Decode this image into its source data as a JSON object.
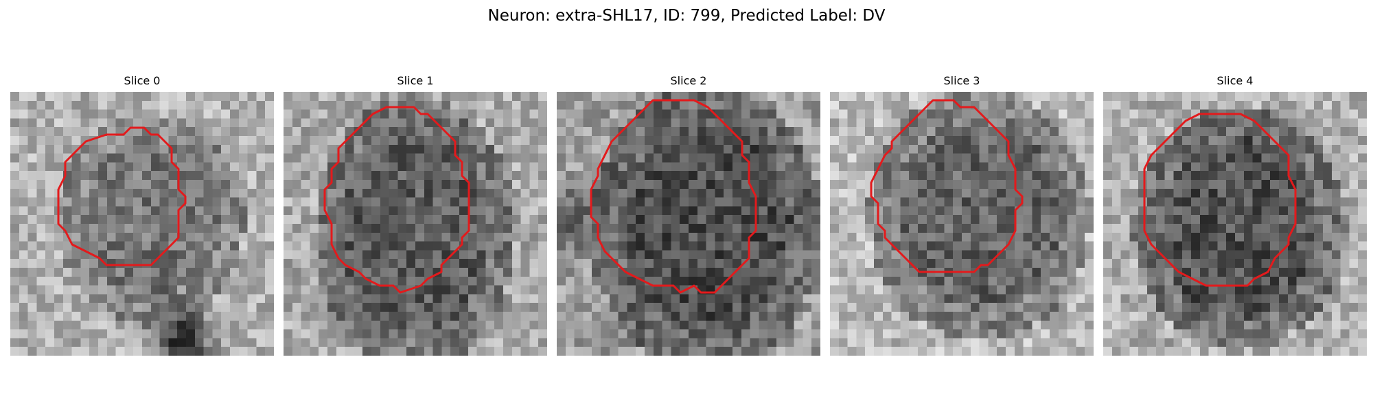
{
  "figure": {
    "title": "Neuron: extra-SHL17, ID: 799, Predicted Label: DV",
    "contour_color": "#e31a1c"
  },
  "slices": [
    {
      "label": "Slice 0"
    },
    {
      "label": "Slice 1"
    },
    {
      "label": "Slice 2"
    },
    {
      "label": "Slice 3"
    },
    {
      "label": "Slice 4"
    }
  ]
}
